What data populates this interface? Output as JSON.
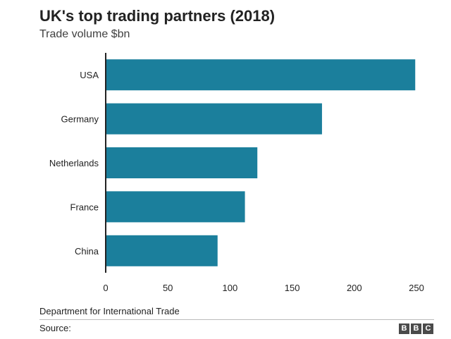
{
  "chart_data": {
    "type": "bar",
    "orientation": "horizontal",
    "title": "UK's top trading partners (2018)",
    "subtitle": "Trade volume $bn",
    "categories": [
      "USA",
      "Germany",
      "Netherlands",
      "France",
      "China"
    ],
    "values": [
      249,
      174,
      122,
      112,
      90
    ],
    "xlim": [
      0,
      250
    ],
    "xticks": [
      0,
      50,
      100,
      150,
      200,
      250
    ],
    "xlabel": "",
    "ylabel": "",
    "bar_color": "#1b7f9c",
    "grid": false
  },
  "footer": {
    "note": "Department for International Trade",
    "source_label": "Source:"
  },
  "logo": {
    "letters": [
      "B",
      "B",
      "C"
    ]
  }
}
